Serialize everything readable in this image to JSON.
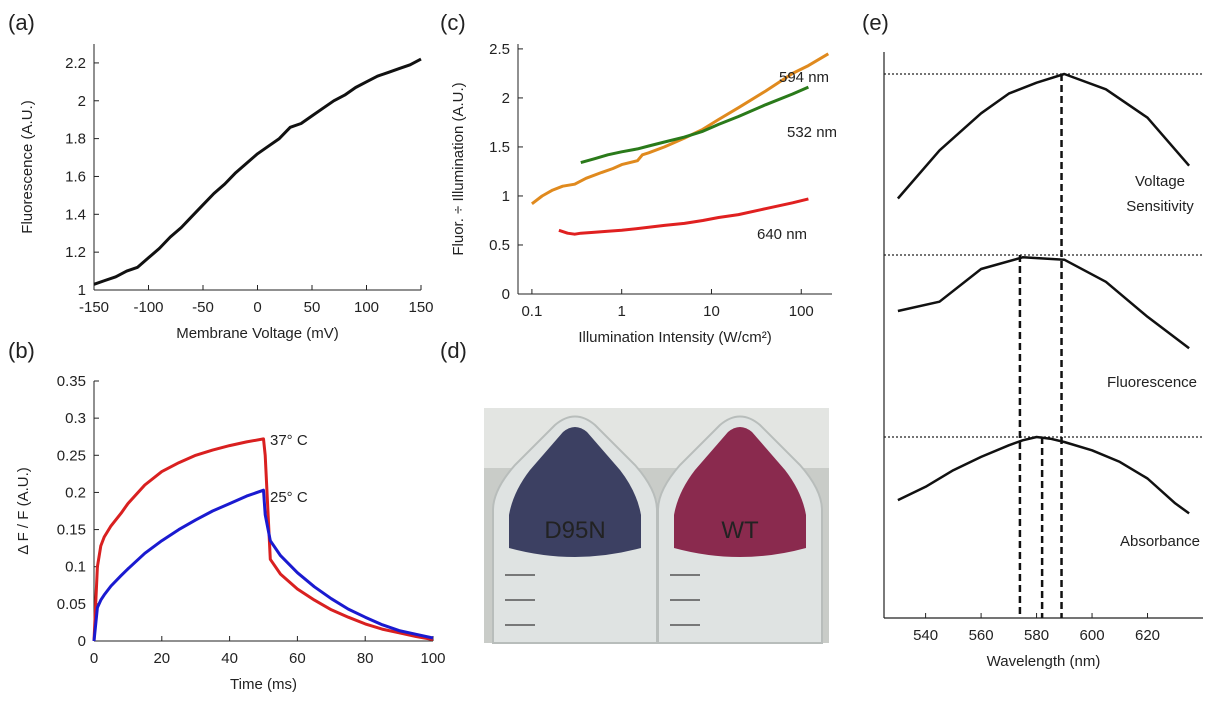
{
  "chart_data": [
    {
      "panel": "(a)",
      "type": "line",
      "xlabel": "Membrane Voltage (mV)",
      "ylabel": "Fluorescence (A.U.)",
      "xlim": [
        -150,
        150
      ],
      "ylim": [
        1,
        2.3
      ],
      "xticks": [
        "-150",
        "-100",
        "-50",
        "0",
        "50",
        "100",
        "150"
      ],
      "yticks": [
        "1",
        "1.2",
        "1.4",
        "1.6",
        "1.8",
        "2",
        "2.2"
      ],
      "series": [
        {
          "color": "#111111",
          "x": [
            -150,
            -140,
            -130,
            -120,
            -110,
            -100,
            -90,
            -80,
            -70,
            -60,
            -50,
            -40,
            -30,
            -20,
            -10,
            0,
            10,
            20,
            30,
            40,
            50,
            60,
            70,
            80,
            90,
            100,
            110,
            120,
            130,
            140,
            150
          ],
          "y": [
            1.03,
            1.05,
            1.07,
            1.1,
            1.12,
            1.17,
            1.22,
            1.28,
            1.33,
            1.39,
            1.45,
            1.51,
            1.56,
            1.62,
            1.67,
            1.72,
            1.76,
            1.8,
            1.86,
            1.88,
            1.92,
            1.96,
            2.0,
            2.03,
            2.07,
            2.1,
            2.13,
            2.15,
            2.17,
            2.19,
            2.22
          ]
        }
      ]
    },
    {
      "panel": "(b)",
      "type": "line",
      "xlabel": "Time (ms)",
      "ylabel": "Δ F / F (A.U.)",
      "xlim": [
        0,
        100
      ],
      "ylim": [
        0,
        0.35
      ],
      "xticks": [
        "0",
        "20",
        "40",
        "60",
        "80",
        "100"
      ],
      "yticks": [
        "0",
        "0.05",
        "0.1",
        "0.15",
        "0.2",
        "0.25",
        "0.3",
        "0.35"
      ],
      "series": [
        {
          "name": "37° C",
          "color": "#d92020",
          "x": [
            0,
            1,
            2,
            3,
            5,
            8,
            10,
            15,
            20,
            25,
            30,
            35,
            40,
            45,
            50,
            50.5,
            52,
            55,
            60,
            65,
            70,
            75,
            80,
            85,
            90,
            95,
            100
          ],
          "y": [
            0,
            0.1,
            0.128,
            0.14,
            0.155,
            0.172,
            0.185,
            0.21,
            0.228,
            0.24,
            0.25,
            0.257,
            0.263,
            0.268,
            0.272,
            0.25,
            0.11,
            0.09,
            0.07,
            0.055,
            0.042,
            0.032,
            0.023,
            0.016,
            0.011,
            0.006,
            0.002
          ]
        },
        {
          "name": "25° C",
          "color": "#1a1ad0",
          "x": [
            0,
            1,
            2,
            3,
            5,
            8,
            10,
            15,
            20,
            25,
            30,
            35,
            40,
            45,
            50,
            50.5,
            52,
            55,
            60,
            65,
            70,
            75,
            80,
            85,
            90,
            95,
            100
          ],
          "y": [
            0,
            0.045,
            0.055,
            0.062,
            0.074,
            0.088,
            0.097,
            0.118,
            0.135,
            0.15,
            0.163,
            0.175,
            0.185,
            0.195,
            0.203,
            0.17,
            0.135,
            0.115,
            0.092,
            0.073,
            0.057,
            0.043,
            0.032,
            0.022,
            0.014,
            0.009,
            0.004
          ]
        }
      ]
    },
    {
      "panel": "(c)",
      "type": "line",
      "xscale": "log",
      "xlabel": "Illumination Intensity (W/cm²)",
      "ylabel": "Fluor. ÷ Illumination (A.U.)",
      "xlim": [
        0.07,
        220
      ],
      "ylim": [
        0,
        2.55
      ],
      "xticks": [
        "0.1",
        "1",
        "10",
        "100"
      ],
      "yticks": [
        "0",
        "0.5",
        "1",
        "1.5",
        "2",
        "2.5"
      ],
      "series": [
        {
          "name": "594 nm",
          "color": "#e08a1e",
          "x": [
            0.1,
            0.13,
            0.17,
            0.22,
            0.3,
            0.4,
            0.6,
            0.8,
            1,
            1.5,
            1.7,
            2,
            3,
            5,
            8,
            12,
            20,
            40,
            80,
            120,
            200
          ],
          "y": [
            0.92,
            1.0,
            1.06,
            1.1,
            1.12,
            1.18,
            1.24,
            1.28,
            1.32,
            1.36,
            1.42,
            1.44,
            1.5,
            1.59,
            1.68,
            1.78,
            1.9,
            2.07,
            2.25,
            2.33,
            2.45
          ]
        },
        {
          "name": "532 nm",
          "color": "#2a7a1a",
          "x": [
            0.35,
            0.5,
            0.7,
            1,
            1.5,
            2,
            3,
            5,
            8,
            12,
            20,
            40,
            80,
            120
          ],
          "y": [
            1.34,
            1.38,
            1.42,
            1.45,
            1.48,
            1.51,
            1.55,
            1.6,
            1.66,
            1.73,
            1.81,
            1.93,
            2.04,
            2.11
          ]
        },
        {
          "name": "640 nm",
          "color": "#e02020",
          "x": [
            0.2,
            0.25,
            0.3,
            0.35,
            0.5,
            0.7,
            1,
            2,
            3,
            5,
            8,
            12,
            20,
            40,
            80,
            120
          ],
          "y": [
            0.65,
            0.62,
            0.61,
            0.62,
            0.63,
            0.64,
            0.65,
            0.68,
            0.7,
            0.72,
            0.75,
            0.78,
            0.81,
            0.87,
            0.93,
            0.97
          ]
        }
      ]
    },
    {
      "panel": "(e)",
      "type": "line",
      "xlabel": "Wavelength (nm)",
      "xlim": [
        525,
        640
      ],
      "xticks": [
        "540",
        "560",
        "580",
        "600",
        "620"
      ],
      "series": [
        {
          "name": "Voltage Sensitivity",
          "color": "#111111",
          "norm_range": [
            0.4,
            1.0
          ],
          "x": [
            530,
            545,
            560,
            570,
            580,
            590,
            605,
            620,
            635
          ],
          "y": [
            0.43,
            0.65,
            0.82,
            0.91,
            0.96,
            1.0,
            0.93,
            0.8,
            0.58
          ]
        },
        {
          "name": "Fluorescence",
          "color": "#111111",
          "norm_range": [
            0.1,
            1.0
          ],
          "x": [
            530,
            545,
            560,
            575,
            590,
            605,
            620,
            635
          ],
          "y": [
            0.52,
            0.6,
            0.88,
            0.98,
            0.96,
            0.77,
            0.47,
            0.2
          ]
        },
        {
          "name": "Absorbance",
          "color": "#111111",
          "norm_range": [
            0.5,
            1.0
          ],
          "x": [
            530,
            540,
            550,
            560,
            570,
            575,
            580,
            585,
            590,
            600,
            610,
            620,
            630,
            635
          ],
          "y": [
            0.62,
            0.7,
            0.8,
            0.88,
            0.95,
            0.98,
            1.0,
            0.99,
            0.97,
            0.92,
            0.85,
            0.75,
            0.6,
            0.54
          ]
        }
      ],
      "dashed_lines_nm": [
        574,
        582,
        589
      ]
    }
  ],
  "panels": {
    "a": "(a)",
    "b": "(b)",
    "c": "(c)",
    "d": "(d)",
    "e": "(e)"
  },
  "photo": {
    "left_label": "D95N",
    "right_label": "WT",
    "left_color": "#3c4062",
    "right_color": "#8a2a4e"
  }
}
